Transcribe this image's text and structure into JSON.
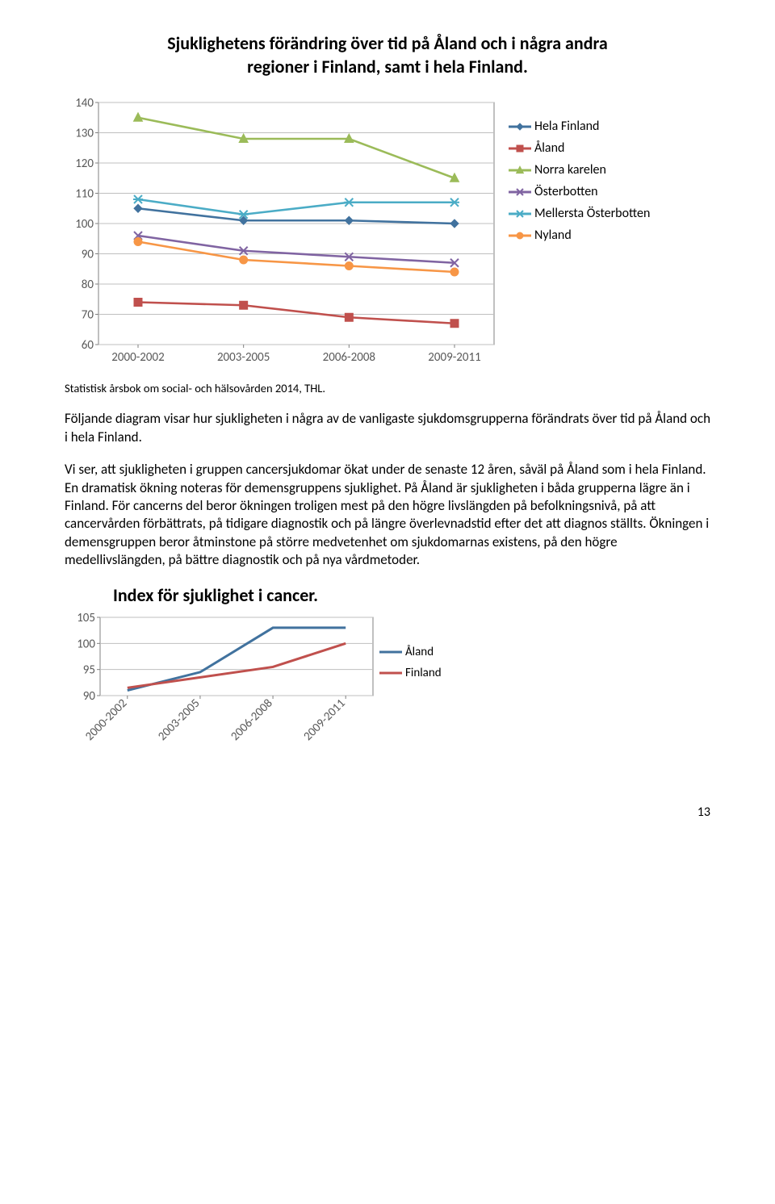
{
  "doc_title_line1": "Sjuklighetens förändring över tid på Åland och i några andra",
  "doc_title_line2": "regioner i Finland, samt i hela Finland.",
  "main_chart": {
    "type": "line",
    "categories": [
      "2000-2002",
      "2003-2005",
      "2006-2008",
      "2009-2011"
    ],
    "ylim": [
      60,
      140
    ],
    "ytick_step": 10,
    "tick_fontsize": 15,
    "plot_bg": "#ffffff",
    "grid_color": "#bfbfbf",
    "axis_color": "#808080",
    "line_width": 2.6,
    "marker_size": 5,
    "series": [
      {
        "name": "Hela Finland",
        "color": "#41729e",
        "marker": "diamond",
        "y": [
          105,
          101,
          101,
          100
        ]
      },
      {
        "name": "Åland",
        "color": "#c0504d",
        "marker": "square",
        "y": [
          74,
          73,
          69,
          67
        ]
      },
      {
        "name": "Norra karelen",
        "color": "#9bbb59",
        "marker": "triangle",
        "y": [
          135,
          128,
          128,
          115
        ]
      },
      {
        "name": "Österbotten",
        "color": "#8064a2",
        "marker": "x",
        "y": [
          96,
          91,
          89,
          87
        ]
      },
      {
        "name": "Mellersta Österbotten",
        "color": "#4bacc6",
        "marker": "star",
        "y": [
          108,
          103,
          107,
          107
        ]
      },
      {
        "name": "Nyland",
        "color": "#f79646",
        "marker": "circle",
        "y": [
          94,
          88,
          86,
          84
        ]
      }
    ]
  },
  "source_text": "Statistisk årsbok om social- och hälsovården 2014, THL.",
  "para1": "Följande diagram visar hur sjukligheten i några av de vanligaste sjukdomsgrupperna förändrats över tid på Åland och i hela Finland.",
  "para2": "Vi ser, att sjukligheten i gruppen cancersjukdomar ökat under de senaste 12 åren, såväl på Åland som i hela Finland. En dramatisk ökning noteras för demensgruppens sjuklighet. På Åland är sjukligheten i båda grupperna lägre än i Finland. För cancerns del beror ökningen troligen mest på den högre livslängden på befolkningsnivå, på att cancervården förbättrats, på tidigare diagnostik och på längre överlevnadstid efter det att diagnos ställts. Ökningen i demensgruppen beror åtminstone på större medvetenhet om sjukdomarnas existens, på den högre medellivslängden, på bättre diagnostik och på nya vårdmetoder.",
  "small_chart": {
    "title": "Index för sjuklighet i cancer.",
    "type": "line",
    "categories": [
      "2000-2002",
      "2003-2005",
      "2006-2008",
      "2009-2011"
    ],
    "ylim": [
      90,
      105
    ],
    "yticks": [
      90,
      95,
      100,
      105
    ],
    "tick_fontsize": 15,
    "plot_bg": "#ffffff",
    "grid_color": "#bfbfbf",
    "axis_color": "#808080",
    "line_width": 3,
    "series": [
      {
        "name": "Åland",
        "color": "#41729e",
        "y": [
          91,
          94.5,
          103,
          103
        ]
      },
      {
        "name": "Finland",
        "color": "#c0504d",
        "y": [
          91.5,
          93.5,
          95.5,
          100
        ]
      }
    ]
  },
  "page_number": "13"
}
